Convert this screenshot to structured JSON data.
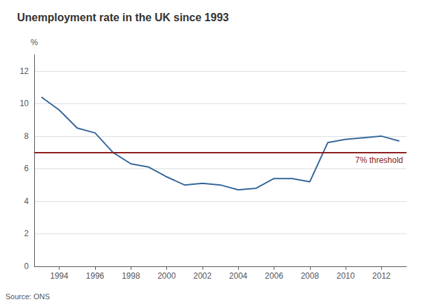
{
  "chart_data": {
    "type": "line",
    "title": "Unemployment rate in the UK since 1993",
    "ylabel": "%",
    "source": "Source: ONS",
    "x": [
      1993,
      1994,
      1995,
      1996,
      1997,
      1998,
      1999,
      2000,
      2001,
      2002,
      2003,
      2004,
      2005,
      2006,
      2007,
      2008,
      2009,
      2010,
      2011,
      2012,
      2013
    ],
    "values": [
      10.4,
      9.6,
      8.5,
      8.2,
      7.0,
      6.3,
      6.1,
      5.5,
      5.0,
      5.1,
      5.0,
      4.7,
      4.8,
      5.4,
      5.4,
      5.2,
      7.6,
      7.8,
      7.9,
      8.0,
      7.7
    ],
    "color": "#336699",
    "hlines": [
      {
        "y": 7.0,
        "label": "7% threshold",
        "color": "#8b1a1a"
      }
    ],
    "xlim": [
      1992.6,
      2013.4
    ],
    "xticks": [
      1994,
      1996,
      1998,
      2000,
      2002,
      2004,
      2006,
      2008,
      2010,
      2012
    ],
    "ylim": [
      0,
      13
    ],
    "yticks": [
      0,
      2,
      4,
      6,
      8,
      10,
      12
    ],
    "grid": true
  }
}
